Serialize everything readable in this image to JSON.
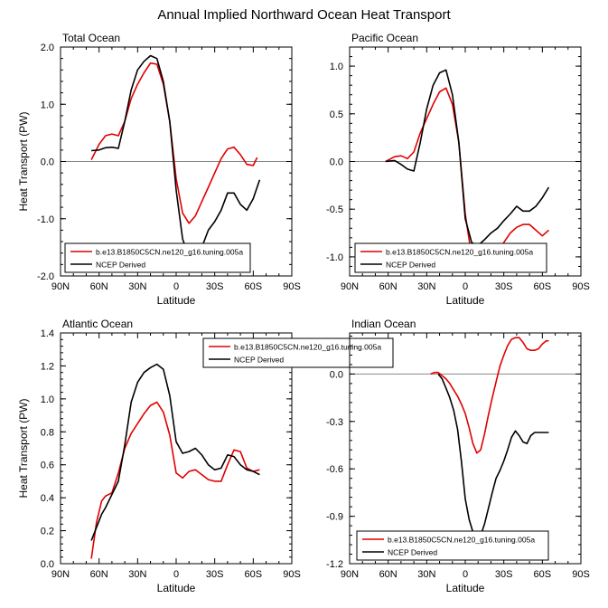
{
  "title": "Annual Implied Northward Ocean Heat Transport",
  "colors": {
    "model": "#e00000",
    "obs": "#000000",
    "zero": "#888888"
  },
  "chart_data": [
    {
      "type": "line",
      "panel": "Total Ocean",
      "title": "Total Ocean",
      "xlabel": "Latitude",
      "ylabel": "Heat Transport (PW)",
      "xticks": [
        "90N",
        "60N",
        "30N",
        "0",
        "30S",
        "60S",
        "90S"
      ],
      "xlim": [
        90,
        -90
      ],
      "ylim": [
        -2.0,
        2.0
      ],
      "yticks": [
        2.0,
        1.0,
        0.0,
        -1.0,
        -2.0
      ],
      "yticklabels": [
        "2.0",
        "1.0",
        "0.0",
        "-1.0",
        "-2.0"
      ],
      "legend": "bottom",
      "grid": false,
      "series": [
        {
          "name": "b.e13.B1850C5CN.ne120_g16.tuning.005a",
          "color": "#e00000",
          "x": [
            66,
            60,
            55,
            50,
            45,
            40,
            35,
            30,
            25,
            20,
            15,
            10,
            5,
            0,
            -5,
            -10,
            -15,
            -20,
            -25,
            -30,
            -35,
            -40,
            -45,
            -50,
            -55,
            -60,
            -63
          ],
          "y": [
            0.03,
            0.3,
            0.45,
            0.48,
            0.45,
            0.7,
            1.1,
            1.35,
            1.55,
            1.72,
            1.7,
            1.35,
            0.7,
            -0.3,
            -0.9,
            -1.08,
            -0.95,
            -0.7,
            -0.45,
            -0.2,
            0.05,
            0.22,
            0.25,
            0.12,
            -0.05,
            -0.07,
            0.07
          ]
        },
        {
          "name": "NCEP Derived",
          "color": "#000000",
          "x": [
            66,
            60,
            55,
            50,
            45,
            40,
            35,
            30,
            25,
            20,
            15,
            10,
            5,
            0,
            -5,
            -10,
            -15,
            -20,
            -25,
            -30,
            -35,
            -40,
            -45,
            -50,
            -55,
            -60,
            -65
          ],
          "y": [
            0.19,
            0.2,
            0.24,
            0.25,
            0.23,
            0.7,
            1.25,
            1.6,
            1.75,
            1.85,
            1.8,
            1.4,
            0.7,
            -0.5,
            -1.35,
            -1.68,
            -1.65,
            -1.5,
            -1.2,
            -1.05,
            -0.85,
            -0.55,
            -0.55,
            -0.75,
            -0.85,
            -0.65,
            -0.32
          ]
        }
      ]
    },
    {
      "type": "line",
      "panel": "Pacific Ocean",
      "title": "Pacific Ocean",
      "xlabel": "Latitude",
      "ylabel": "",
      "xticks": [
        "90N",
        "60N",
        "30N",
        "0",
        "30S",
        "60S",
        "90S"
      ],
      "xlim": [
        90,
        -90
      ],
      "ylim": [
        -1.2,
        1.2
      ],
      "yticks": [
        1.0,
        0.5,
        0.0,
        -0.5,
        -1.0
      ],
      "yticklabels": [
        "1.0",
        "0.5",
        "0.0",
        "-0.5",
        "-1.0"
      ],
      "legend": "bottom",
      "grid": false,
      "series": [
        {
          "name": "b.e13.B1850C5CN.ne120_g16.tuning.005a",
          "color": "#e00000",
          "x": [
            62,
            55,
            50,
            45,
            40,
            35,
            30,
            25,
            20,
            15,
            10,
            5,
            0,
            -5,
            -10,
            -15,
            -20,
            -25,
            -30,
            -35,
            -40,
            -45,
            -50,
            -55,
            -60,
            -65
          ],
          "y": [
            0.0,
            0.05,
            0.06,
            0.03,
            0.1,
            0.3,
            0.45,
            0.6,
            0.73,
            0.77,
            0.6,
            0.2,
            -0.55,
            -1.0,
            -1.13,
            -1.12,
            -1.05,
            -0.95,
            -0.85,
            -0.75,
            -0.69,
            -0.66,
            -0.66,
            -0.72,
            -0.78,
            -0.72
          ]
        },
        {
          "name": "NCEP Derived",
          "color": "#000000",
          "x": [
            62,
            55,
            50,
            45,
            40,
            35,
            30,
            25,
            20,
            15,
            10,
            5,
            0,
            -5,
            -10,
            -15,
            -20,
            -25,
            -30,
            -35,
            -40,
            -45,
            -50,
            -55,
            -60,
            -65
          ],
          "y": [
            0.0,
            0.01,
            -0.03,
            -0.08,
            -0.1,
            0.2,
            0.55,
            0.8,
            0.93,
            0.96,
            0.7,
            0.2,
            -0.6,
            -0.85,
            -0.88,
            -0.82,
            -0.75,
            -0.7,
            -0.62,
            -0.55,
            -0.47,
            -0.52,
            -0.52,
            -0.47,
            -0.38,
            -0.27
          ]
        }
      ]
    },
    {
      "type": "line",
      "panel": "Atlantic Ocean",
      "title": "Atlantic Ocean",
      "xlabel": "Latitude",
      "ylabel": "Heat Transport (PW)",
      "xticks": [
        "90N",
        "60N",
        "30N",
        "0",
        "30S",
        "60S",
        "90S"
      ],
      "xlim": [
        90,
        -90
      ],
      "ylim": [
        0.0,
        1.4
      ],
      "yticks": [
        1.4,
        1.2,
        1.0,
        0.8,
        0.6,
        0.4,
        0.2,
        0.0
      ],
      "yticklabels": [
        "1.4",
        "1.2",
        "1.0",
        "0.8",
        "0.6",
        "0.4",
        "0.2",
        "0.0"
      ],
      "legend": "top-right",
      "grid": false,
      "series": [
        {
          "name": "b.e13.B1850C5CN.ne120_g16.tuning.005a",
          "color": "#e00000",
          "x": [
            66,
            62,
            58,
            55,
            50,
            45,
            40,
            35,
            30,
            25,
            20,
            15,
            10,
            5,
            0,
            -5,
            -10,
            -15,
            -20,
            -25,
            -30,
            -35,
            -40,
            -45,
            -50,
            -55,
            -60,
            -65
          ],
          "y": [
            0.03,
            0.25,
            0.38,
            0.41,
            0.43,
            0.55,
            0.7,
            0.79,
            0.85,
            0.91,
            0.96,
            0.98,
            0.92,
            0.78,
            0.55,
            0.52,
            0.56,
            0.57,
            0.54,
            0.51,
            0.5,
            0.5,
            0.6,
            0.69,
            0.68,
            0.58,
            0.56,
            0.57
          ]
        },
        {
          "name": "NCEP Derived",
          "color": "#000000",
          "x": [
            66,
            62,
            58,
            55,
            50,
            45,
            40,
            35,
            30,
            25,
            20,
            15,
            10,
            5,
            0,
            -5,
            -10,
            -15,
            -20,
            -25,
            -30,
            -35,
            -40,
            -45,
            -50,
            -55,
            -60,
            -65
          ],
          "y": [
            0.14,
            0.22,
            0.3,
            0.34,
            0.42,
            0.5,
            0.72,
            0.98,
            1.1,
            1.16,
            1.19,
            1.21,
            1.18,
            1.02,
            0.74,
            0.67,
            0.68,
            0.7,
            0.66,
            0.6,
            0.57,
            0.58,
            0.66,
            0.65,
            0.6,
            0.57,
            0.56,
            0.54
          ]
        }
      ]
    },
    {
      "type": "line",
      "panel": "Indian Ocean",
      "title": "Indian Ocean",
      "xlabel": "Latitude",
      "ylabel": "",
      "xticks": [
        "90N",
        "60N",
        "30N",
        "0",
        "30S",
        "60S",
        "90S"
      ],
      "xlim": [
        90,
        -90
      ],
      "ylim": [
        -1.2,
        0.26
      ],
      "yticks": [
        0.0,
        -0.3,
        -0.6,
        -0.9,
        -1.2
      ],
      "yticklabels": [
        "0.0",
        "-0.3",
        "-0.6",
        "-0.9",
        "-1.2"
      ],
      "legend": "bottom",
      "grid": false,
      "series": [
        {
          "name": "b.e13.B1850C5CN.ne120_g16.tuning.005a",
          "color": "#e00000",
          "x": [
            27,
            24,
            21,
            18,
            15,
            12,
            9,
            6,
            3,
            0,
            -3,
            -6,
            -9,
            -12,
            -15,
            -18,
            -21,
            -24,
            -27,
            -30,
            -33,
            -36,
            -39,
            -42,
            -45,
            -48,
            -51,
            -54,
            -57,
            -60,
            -63,
            -65
          ],
          "y": [
            0.0,
            0.01,
            0.01,
            -0.01,
            -0.03,
            -0.06,
            -0.1,
            -0.14,
            -0.19,
            -0.25,
            -0.34,
            -0.44,
            -0.5,
            -0.48,
            -0.38,
            -0.26,
            -0.15,
            -0.05,
            0.05,
            0.12,
            0.18,
            0.22,
            0.23,
            0.23,
            0.2,
            0.16,
            0.15,
            0.15,
            0.16,
            0.19,
            0.21,
            0.21
          ]
        },
        {
          "name": "NCEP Derived",
          "color": "#000000",
          "x": [
            21,
            18,
            15,
            12,
            9,
            6,
            3,
            0,
            -3,
            -6,
            -9,
            -12,
            -15,
            -18,
            -21,
            -24,
            -27,
            -30,
            -33,
            -36,
            -39,
            -42,
            -45,
            -48,
            -51,
            -54,
            -57,
            -60,
            -63,
            -65
          ],
          "y": [
            0.0,
            -0.03,
            -0.09,
            -0.15,
            -0.23,
            -0.35,
            -0.55,
            -0.79,
            -0.92,
            -1.0,
            -1.03,
            -1.02,
            -0.95,
            -0.85,
            -0.75,
            -0.66,
            -0.61,
            -0.55,
            -0.48,
            -0.4,
            -0.36,
            -0.39,
            -0.43,
            -0.44,
            -0.39,
            -0.37,
            -0.37,
            -0.37,
            -0.37,
            -0.37
          ]
        }
      ]
    }
  ]
}
